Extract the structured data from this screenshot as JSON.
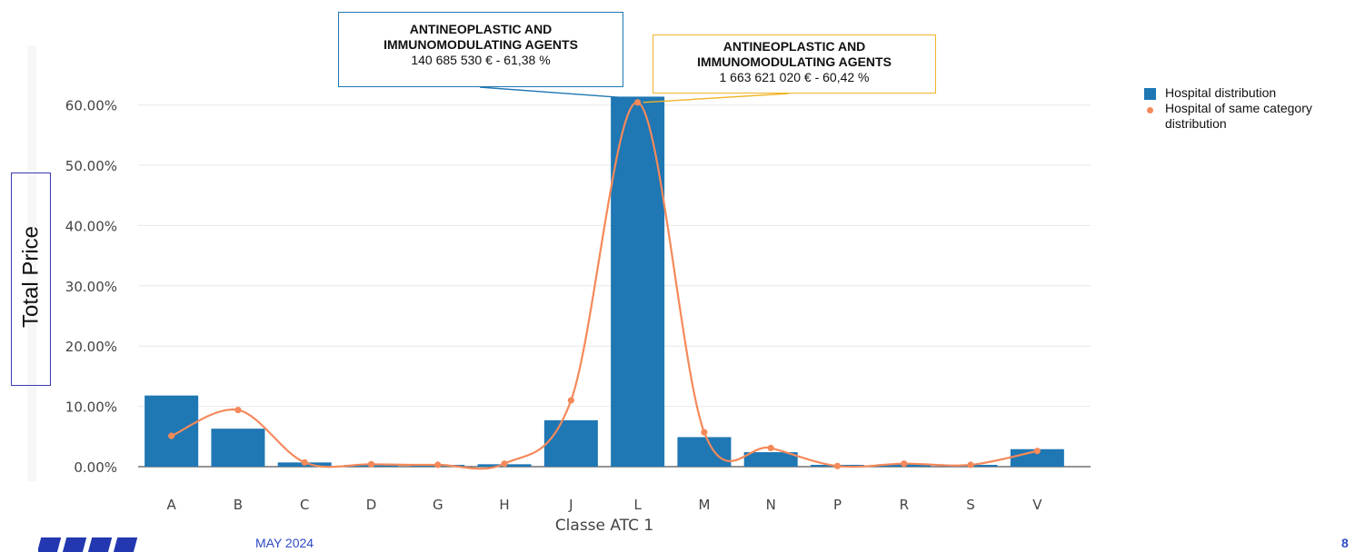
{
  "chart_data": {
    "type": "bar",
    "xlabel": "Classe ATC 1",
    "ylabel": "Total Price",
    "ylim": [
      0,
      0.65
    ],
    "yticks": [
      0,
      0.1,
      0.2,
      0.3,
      0.4,
      0.5,
      0.6
    ],
    "ytick_labels": [
      "0.00%",
      "10.00%",
      "20.00%",
      "30.00%",
      "40.00%",
      "50.00%",
      "60.00%"
    ],
    "categories": [
      "A",
      "B",
      "C",
      "D",
      "G",
      "H",
      "J",
      "L",
      "M",
      "N",
      "P",
      "R",
      "S",
      "V"
    ],
    "series": [
      {
        "name": "Hospital distribution",
        "kind": "bar",
        "color": "#1f77b4",
        "values": [
          0.118,
          0.063,
          0.007,
          0.003,
          0.003,
          0.004,
          0.077,
          0.6138,
          0.049,
          0.024,
          0.003,
          0.004,
          0.003,
          0.029
        ]
      },
      {
        "name": "Hospital of same category distribution",
        "kind": "spline-markers",
        "color": "#f5895a",
        "values": [
          0.051,
          0.094,
          0.007,
          0.004,
          0.003,
          0.005,
          0.11,
          0.6042,
          0.057,
          0.031,
          0.001,
          0.005,
          0.003,
          0.026
        ]
      }
    ],
    "grid": true,
    "legend_position": "top-right"
  },
  "annotations": [
    {
      "title_line1": "ANTINEOPLASTIC AND",
      "title_line2": "IMMUNOMODULATING AGENTS",
      "value": "140 685 530 €  -   61,38 %",
      "color": "#1f78b4"
    },
    {
      "title_line1": "ANTINEOPLASTIC AND",
      "title_line2": "IMMUNOMODULATING AGENTS",
      "value": "1 663 621 020 €  -  60,42 %",
      "color": "#f0b428"
    }
  ],
  "legend": {
    "item1": "Hospital distribution",
    "item2_line1": "Hospital of same category",
    "item2_line2": "distribution"
  },
  "footer": {
    "date": "MAY 2024",
    "page": "8"
  }
}
